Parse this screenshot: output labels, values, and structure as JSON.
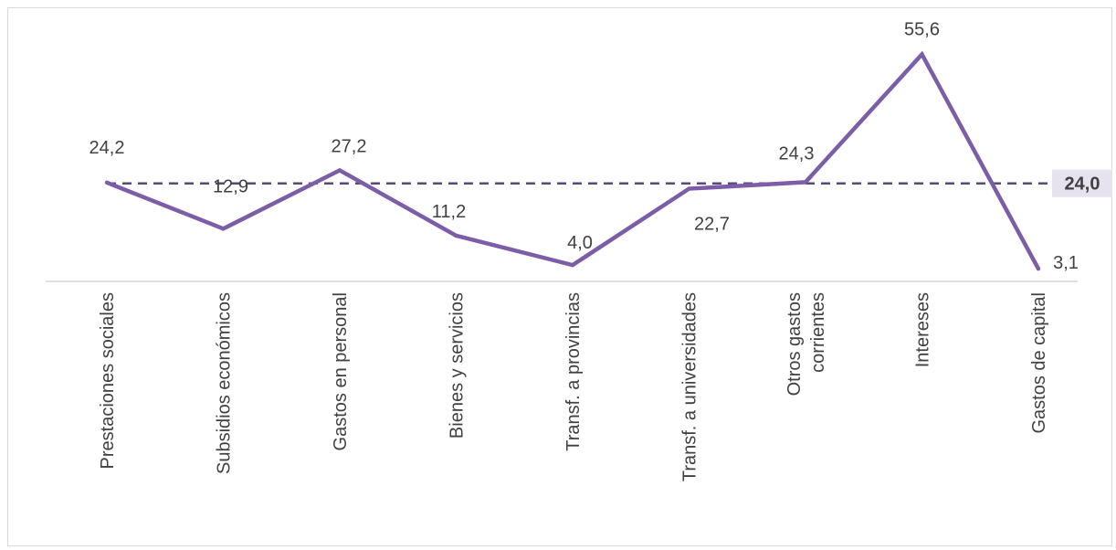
{
  "chart_data": {
    "type": "line",
    "title": "",
    "xlabel": "",
    "ylabel": "",
    "ylim": [
      0,
      60
    ],
    "grid": false,
    "categories": [
      [
        "Prestaciones sociales"
      ],
      [
        "Subsidios económicos"
      ],
      [
        "Gastos en personal"
      ],
      [
        "Bienes y servicios"
      ],
      [
        "Transf. a provincias"
      ],
      [
        "Transf. a universidades"
      ],
      [
        "Otros gastos",
        "corrientes"
      ],
      [
        "Intereses"
      ],
      [
        "Gastos de capital"
      ]
    ],
    "values": [
      24.2,
      12.9,
      27.2,
      11.2,
      4.0,
      22.7,
      24.3,
      55.6,
      3.1
    ],
    "value_labels": [
      "24,2",
      "12,9",
      "27,2",
      "11,2",
      "4,0",
      "22,7",
      "24,3",
      "55,6",
      "3,1"
    ],
    "average": {
      "value": 24.0,
      "label": "24,0"
    },
    "colors": {
      "line": "#7b5ea7",
      "average_line": "#5a4a7a",
      "average_bg": "#e6e2ee",
      "text": "#404040",
      "axis": "#bfbfbf"
    }
  }
}
